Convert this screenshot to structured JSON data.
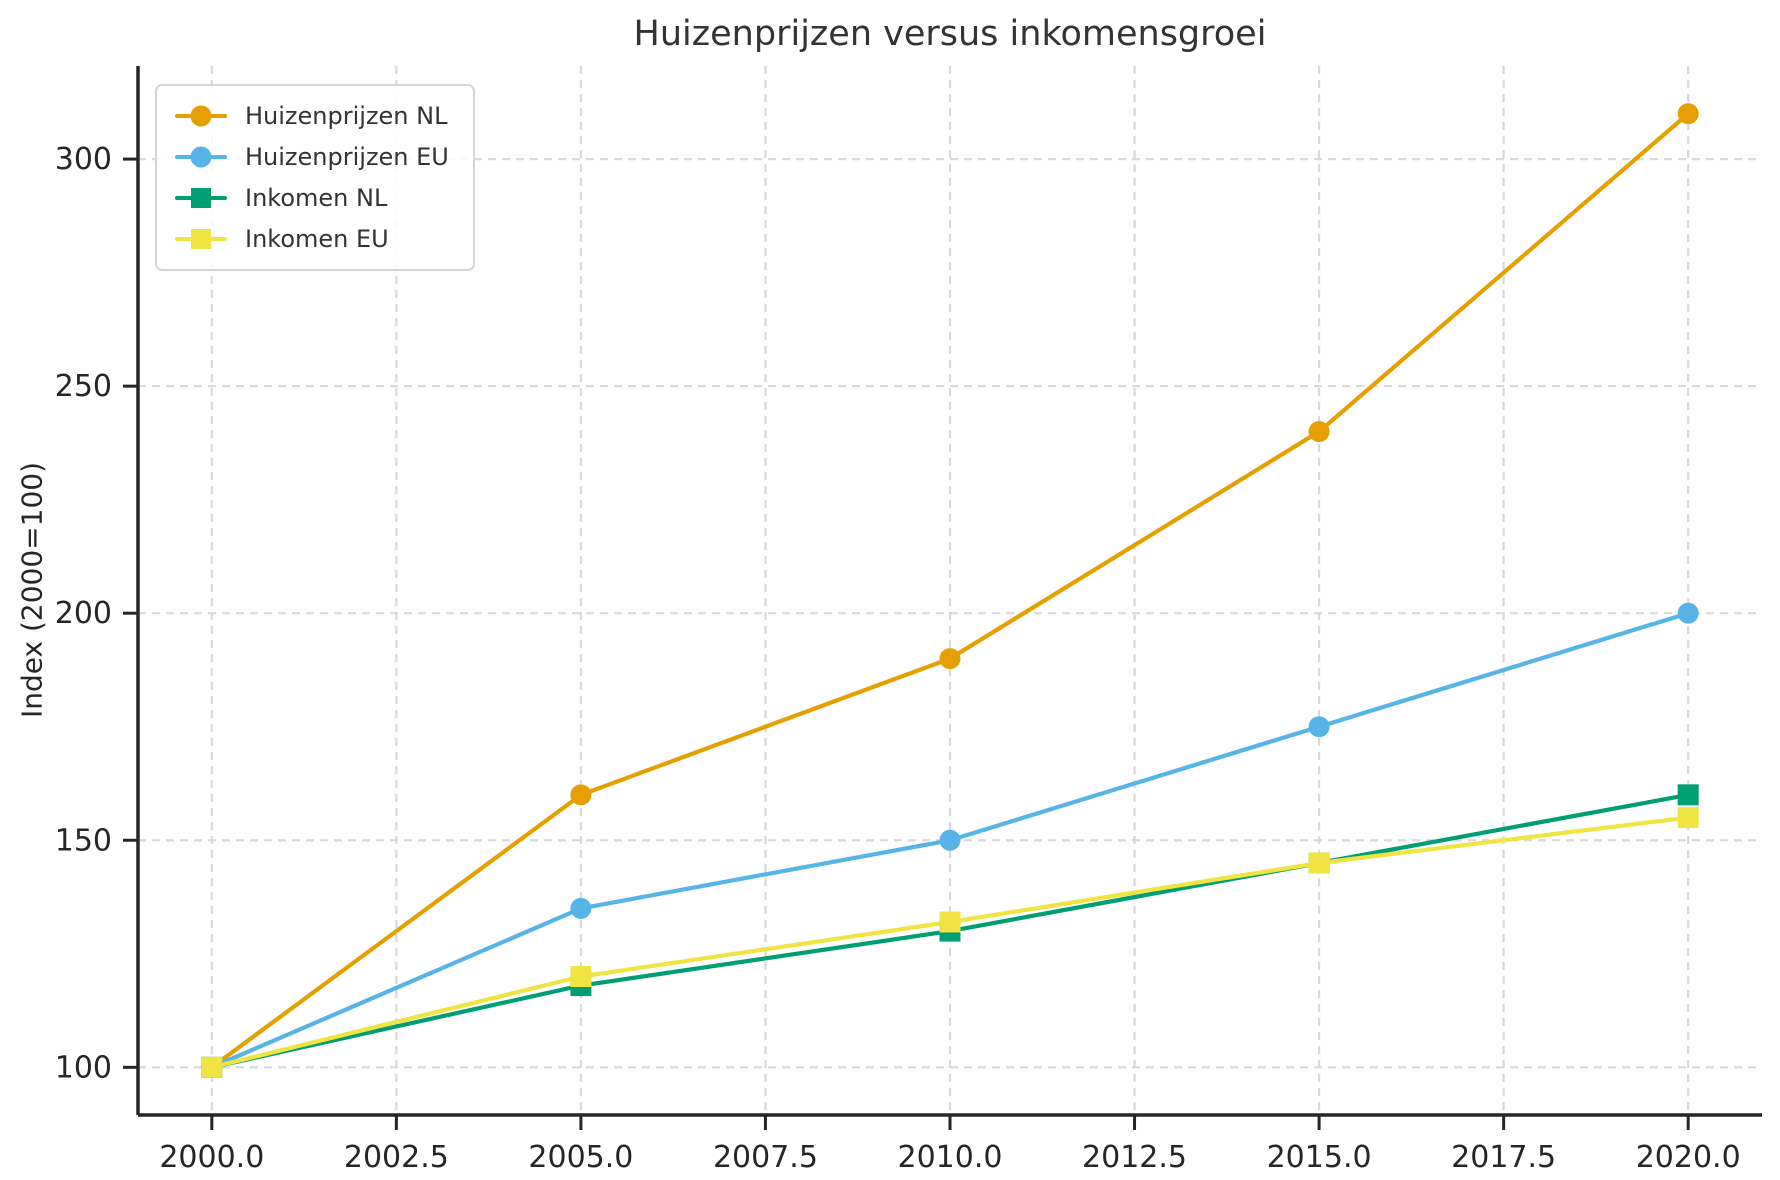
{
  "chart_data": {
    "type": "line",
    "title": "Huizenprijzen versus inkomensgroei",
    "xlabel": "",
    "ylabel": "Index (2000=100)",
    "x": [
      2000,
      2005,
      2010,
      2015,
      2020
    ],
    "series": [
      {
        "name": "Huizenprijzen NL",
        "color": "#E69F00",
        "marker": "circle",
        "values": [
          100,
          160,
          190,
          240,
          310
        ]
      },
      {
        "name": "Huizenprijzen EU",
        "color": "#56B4E9",
        "marker": "circle",
        "values": [
          100,
          135,
          150,
          175,
          200
        ]
      },
      {
        "name": "Inkomen NL",
        "color": "#009E73",
        "marker": "square",
        "values": [
          100,
          118,
          130,
          145,
          160
        ]
      },
      {
        "name": "Inkomen EU",
        "color": "#F0E442",
        "marker": "square",
        "values": [
          100,
          120,
          132,
          145,
          155
        ]
      }
    ],
    "xlim": [
      1999,
      2021
    ],
    "ylim": [
      89.5,
      320.5
    ],
    "xticks": [
      2000.0,
      2002.5,
      2005.0,
      2007.5,
      2010.0,
      2012.5,
      2015.0,
      2017.5,
      2020.0
    ],
    "xtick_labels": [
      "2000.0",
      "2002.5",
      "2005.0",
      "2007.5",
      "2010.0",
      "2012.5",
      "2015.0",
      "2017.5",
      "2020.0"
    ],
    "yticks": [
      100,
      150,
      200,
      250,
      300
    ],
    "ytick_labels": [
      "100",
      "150",
      "200",
      "250",
      "300"
    ],
    "grid": true,
    "grid_style": "dashed",
    "legend_position": "upper-left",
    "colors": {
      "background": "#ffffff",
      "grid": "#d9d9d9",
      "axis": "#262626",
      "tick_text": "#262626",
      "title_text": "#333333"
    }
  }
}
